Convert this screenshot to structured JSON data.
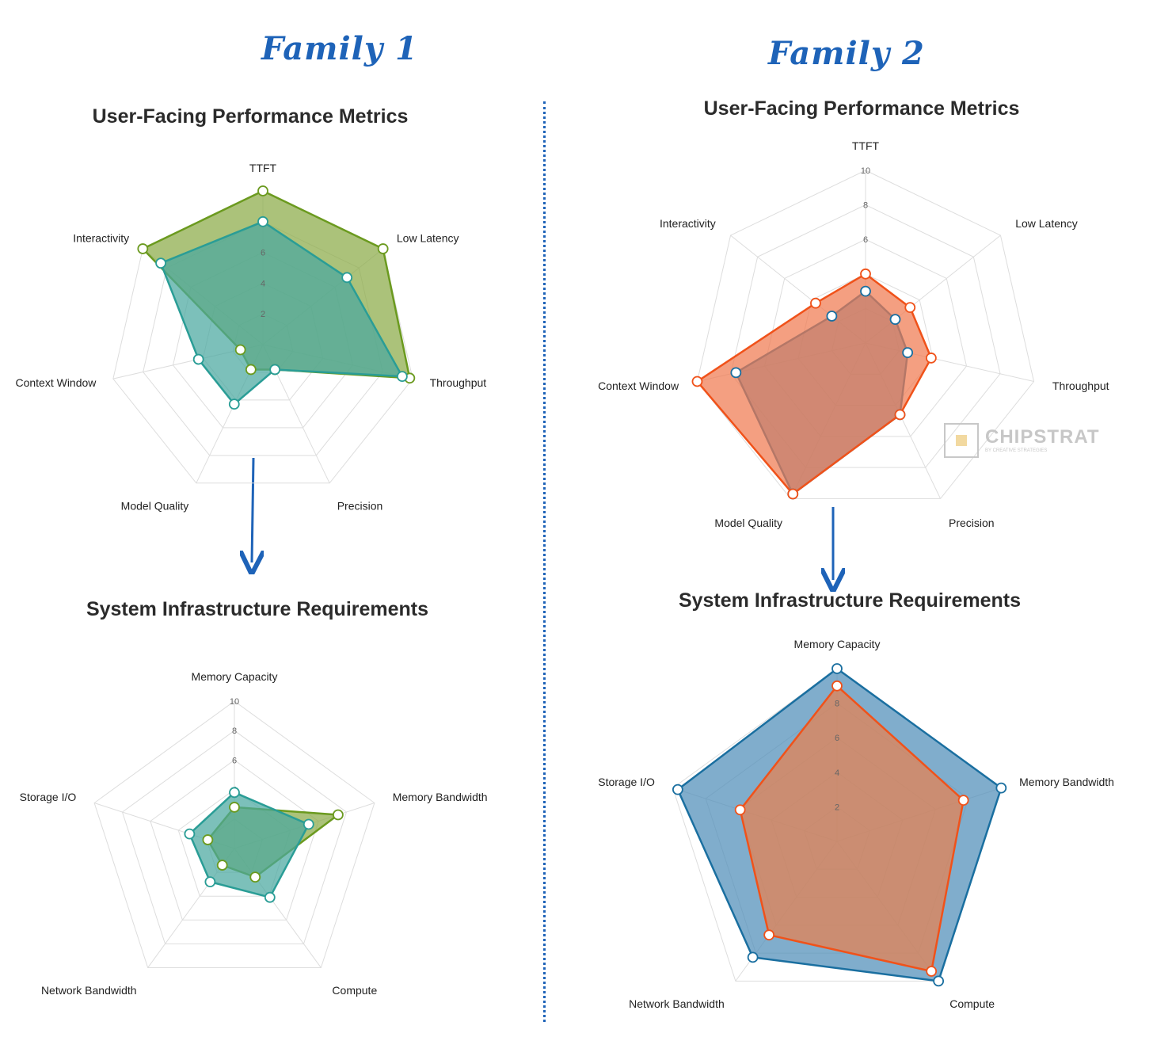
{
  "families": [
    {
      "title": "Family 1",
      "perf_title": "User-Facing Performance Metrics",
      "infra_title": "System Infrastructure Requirements"
    },
    {
      "title": "Family 2",
      "perf_title": "User-Facing Performance Metrics",
      "infra_title": "System Infrastructure Requirements"
    }
  ],
  "watermark": {
    "text": "CHIPSTRAT",
    "subtext": "BY CREATIVE STRATEGIES"
  },
  "chart_data": [
    {
      "type": "radar",
      "title": "User-Facing Performance Metrics",
      "family": "Family 1",
      "axes": [
        "TTFT",
        "Low Latency",
        "Throughput",
        "Precision",
        "Model Quality",
        "Context Window",
        "Interactivity"
      ],
      "rlim": [
        0,
        10
      ],
      "tick_labels": [
        "2",
        "4",
        "6"
      ],
      "grid": true,
      "series": [
        {
          "values": [
            10,
            10,
            9.8,
            1.8,
            1.8,
            1.5,
            10
          ],
          "color": "#6b9a1f",
          "fill": "#8aab47"
        },
        {
          "values": [
            8,
            7,
            9.3,
            1.8,
            4.3,
            4.3,
            8.5
          ],
          "color": "#2a9d96",
          "fill": "#4aa8a0"
        }
      ]
    },
    {
      "type": "radar",
      "title": "System Infrastructure Requirements",
      "family": "Family 1",
      "axes": [
        "Memory Capacity",
        "Memory Bandwidth",
        "Compute",
        "Network Bandwidth",
        "Storage I/O"
      ],
      "rlim": [
        0,
        10
      ],
      "tick_labels": [
        "4",
        "6",
        "8",
        "10"
      ],
      "grid": true,
      "series": [
        {
          "values": [
            2.8,
            7.4,
            2.4,
            1.4,
            1.9
          ],
          "color": "#6b9a1f",
          "fill": "#8aab47"
        },
        {
          "values": [
            3.8,
            5.3,
            4.1,
            2.8,
            3.2
          ],
          "color": "#2a9d96",
          "fill": "#4aa8a0"
        }
      ]
    },
    {
      "type": "radar",
      "title": "User-Facing Performance Metrics",
      "family": "Family 2",
      "axes": [
        "TTFT",
        "Low Latency",
        "Throughput",
        "Precision",
        "Model Quality",
        "Context Window",
        "Interactivity"
      ],
      "rlim": [
        0,
        10
      ],
      "tick_labels": [
        "4",
        "6",
        "8",
        "10"
      ],
      "grid": true,
      "series": [
        {
          "values": [
            3,
            2.2,
            2.5,
            4.6,
            9.7,
            7.7,
            2.5
          ],
          "color": "#1a6fa0",
          "fill": "#4f8db8"
        },
        {
          "values": [
            4,
            3.3,
            3.9,
            4.6,
            9.7,
            10,
            3.7
          ],
          "color": "#f0521a",
          "fill": "#f07a50"
        }
      ]
    },
    {
      "type": "radar",
      "title": "System Infrastructure Requirements",
      "family": "Family 2",
      "axes": [
        "Memory Capacity",
        "Memory Bandwidth",
        "Compute",
        "Network Bandwidth",
        "Storage I/O"
      ],
      "rlim": [
        0,
        10
      ],
      "tick_labels": [
        "2",
        "4",
        "6",
        "8"
      ],
      "grid": true,
      "series": [
        {
          "values": [
            10,
            10,
            10,
            8.3,
            9.7
          ],
          "color": "#1a6fa0",
          "fill": "#4f8db8"
        },
        {
          "values": [
            9,
            7.7,
            9.3,
            6.7,
            5.9
          ],
          "color": "#f0521a",
          "fill": "#e8814f"
        }
      ]
    }
  ]
}
